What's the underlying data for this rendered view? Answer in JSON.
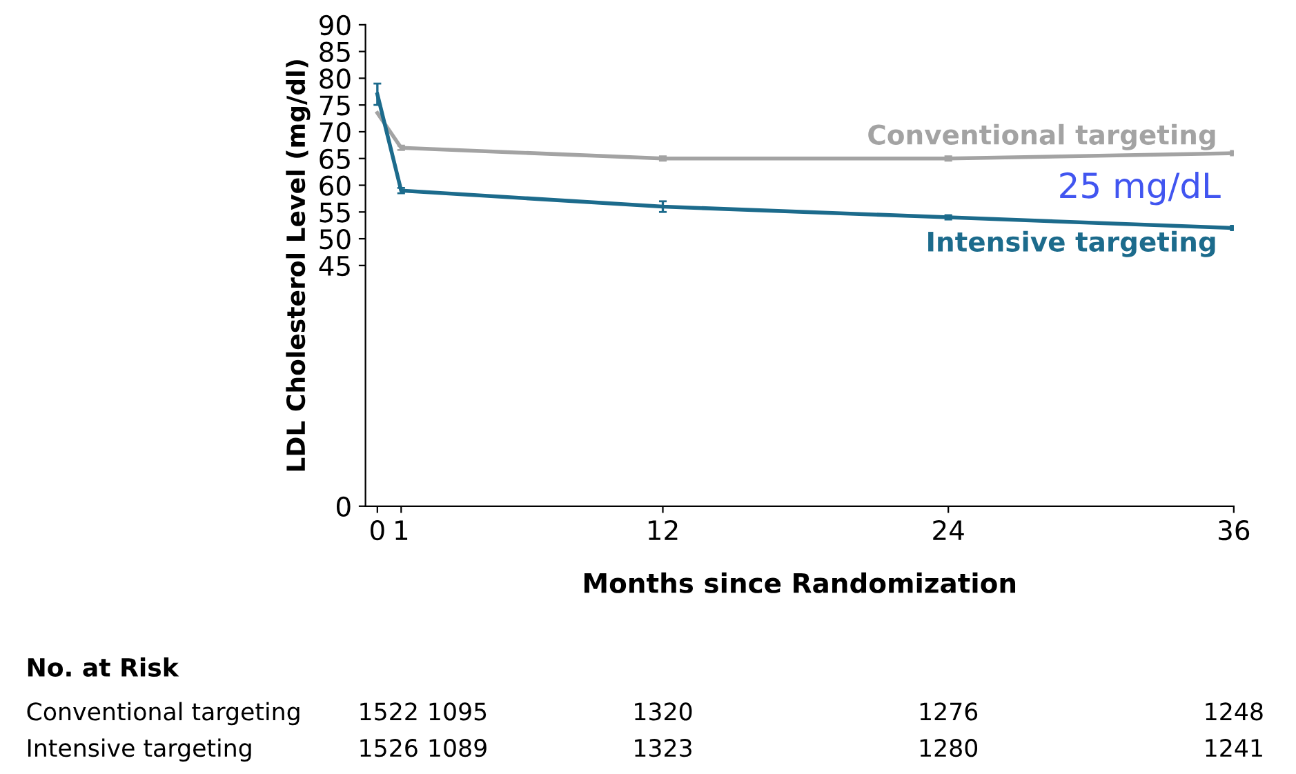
{
  "chart_data": {
    "type": "line",
    "ylabel": "LDL Cholesterol Level (mg/dl)",
    "xlabel": "Months since Randomization",
    "x": [
      0,
      1,
      12,
      24,
      36
    ],
    "series": [
      {
        "name": "Conventional targeting",
        "color": "#a3a3a3",
        "values": [
          73.5,
          67,
          65,
          65,
          66
        ],
        "errors": [
          null,
          0.4,
          0.4,
          0.4,
          0.4
        ]
      },
      {
        "name": "Intensive targeting",
        "color": "#1c6b8c",
        "values": [
          77,
          59,
          56,
          54,
          52
        ],
        "errors": [
          2,
          0.5,
          1,
          0.4,
          0.4
        ]
      }
    ],
    "xlim": [
      -0.5,
      36
    ],
    "xticks": [
      0,
      1,
      12,
      24,
      36
    ],
    "ylim": [
      0,
      90
    ],
    "yticks": [
      0,
      45,
      50,
      55,
      60,
      65,
      70,
      75,
      80,
      85,
      90
    ],
    "grid": false,
    "legend": false,
    "marker": "none",
    "line_style": "solid",
    "annotations": [
      "25 mg/dL",
      "No. at Risk",
      "Conventional targeting",
      "1522",
      "1095",
      "1320",
      "1276",
      "1248",
      "Intensive targeting",
      "1526",
      "1089",
      "1323",
      "1280",
      "1241"
    ]
  }
}
